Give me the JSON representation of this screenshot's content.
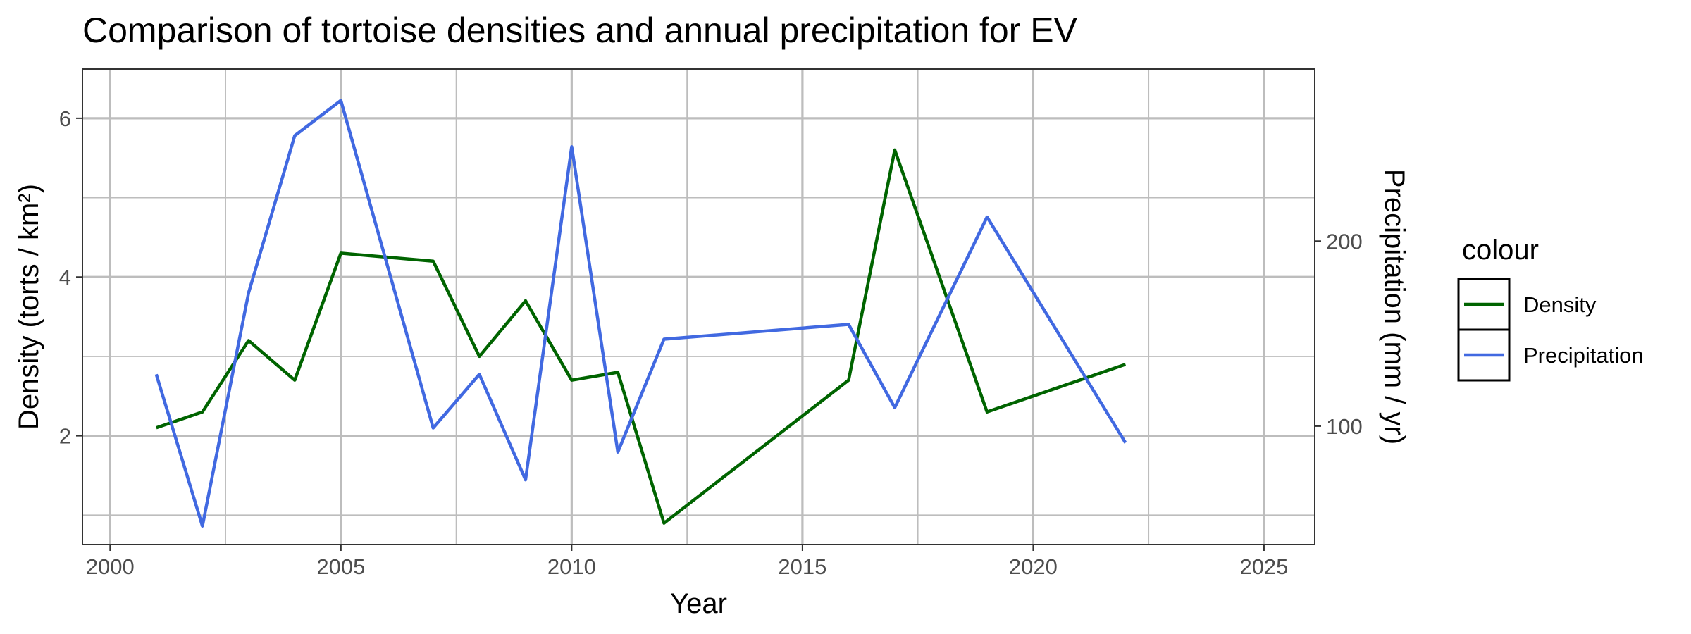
{
  "chart_data": {
    "type": "line",
    "title": "Comparison of tortoise densities and annual precipitation for EV",
    "xlabel": "Year",
    "ylabel": "Density (torts / km²)",
    "y2label": "Precipitation (mm / yr)",
    "xlim": [
      1999.4,
      2026.1
    ],
    "ylim": [
      0.63,
      6.62
    ],
    "y2lim": [
      36.0,
      293.0
    ],
    "x_ticks": [
      2000,
      2005,
      2010,
      2015,
      2020,
      2025
    ],
    "y_ticks": [
      2,
      4,
      6
    ],
    "y2_ticks": [
      100,
      200
    ],
    "grid": true,
    "legend": {
      "title": "colour",
      "position": "right"
    },
    "series": [
      {
        "name": "Density",
        "axis": "left",
        "color": "#006400",
        "x": [
          2001,
          2002,
          2003,
          2004,
          2005,
          2007,
          2008,
          2009,
          2010,
          2011,
          2012,
          2016,
          2017,
          2019,
          2022
        ],
        "values": [
          2.1,
          2.3,
          3.2,
          2.7,
          4.3,
          4.2,
          3.0,
          3.7,
          2.7,
          2.8,
          0.9,
          2.7,
          5.6,
          2.3,
          2.9
        ]
      },
      {
        "name": "Precipitation",
        "axis": "right",
        "color": "#4169E1",
        "x": [
          2001,
          2002,
          2003,
          2004,
          2005,
          2007,
          2008,
          2009,
          2010,
          2011,
          2012,
          2016,
          2017,
          2019,
          2022
        ],
        "values": [
          128,
          46,
          172,
          257,
          276,
          99,
          128,
          71,
          251,
          86,
          147,
          155,
          110,
          213,
          91
        ]
      }
    ]
  }
}
